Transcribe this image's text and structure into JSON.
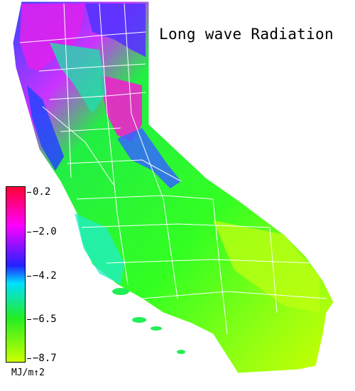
{
  "title": "Long wave Radiation",
  "legend": {
    "ticks": [
      "0.2",
      "−2.0",
      "−4.2",
      "−6.5",
      "−8.7"
    ],
    "unit": "MJ/m↑2",
    "colors": [
      "#ff0033",
      "#ff00ff",
      "#2222ff",
      "#00e0ff",
      "#22ee22",
      "#ccff00"
    ]
  }
}
